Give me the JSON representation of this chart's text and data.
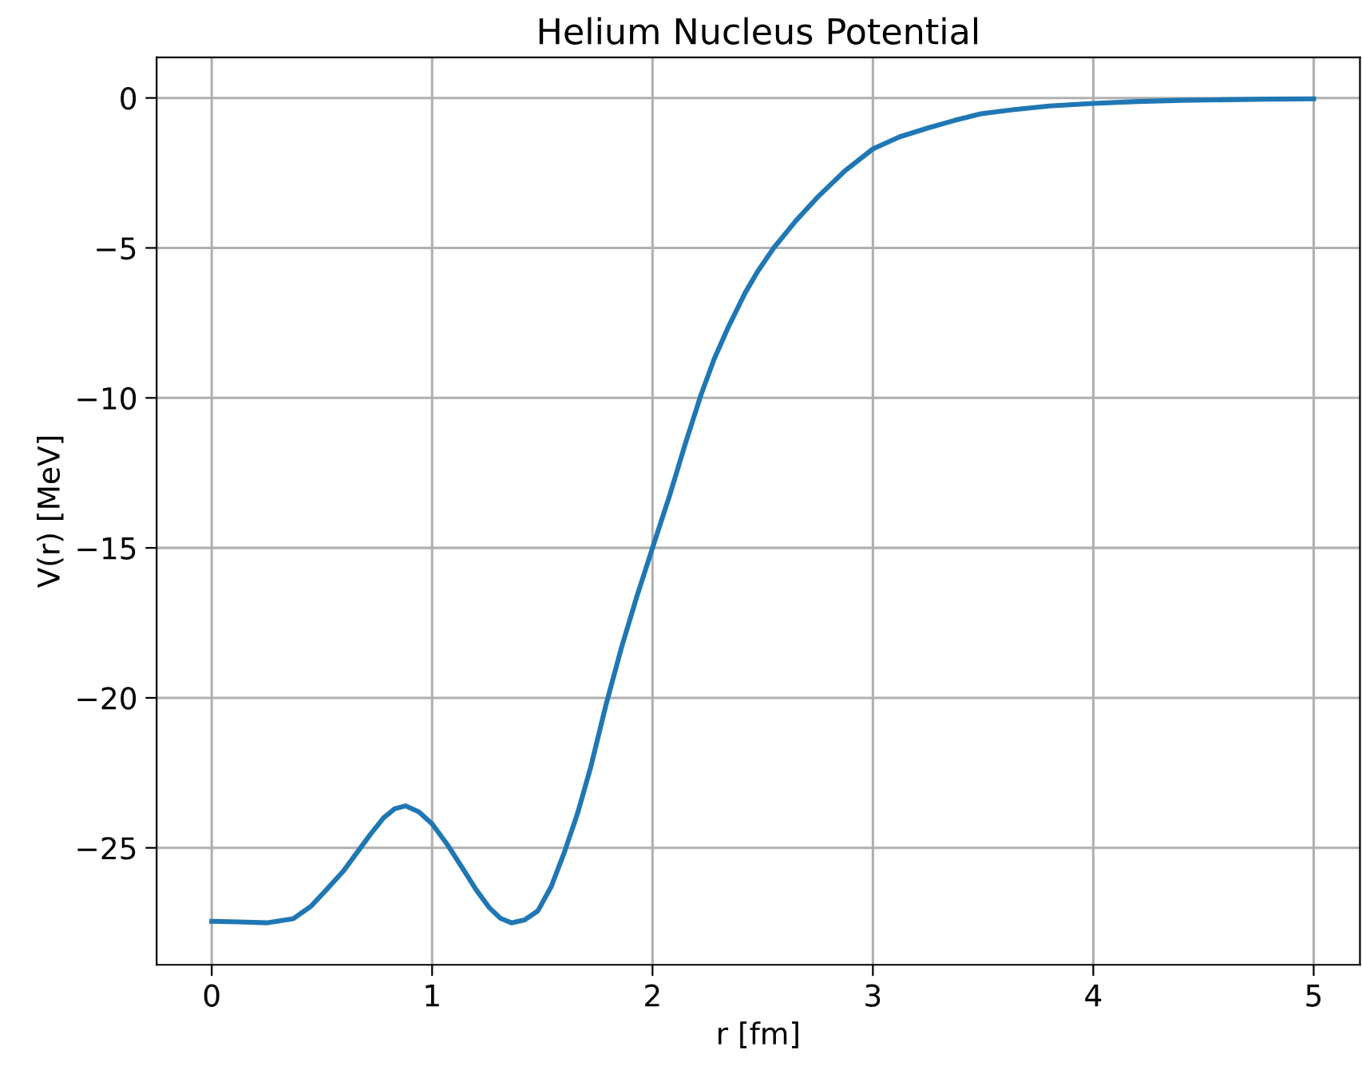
{
  "chart_data": {
    "type": "line",
    "title": "Helium Nucleus Potential",
    "xlabel": "r [fm]",
    "ylabel": "V(r) [MeV]",
    "series": [
      {
        "color": "#1f77b4",
        "x": [
          0,
          0.12,
          0.25,
          0.37,
          0.45,
          0.52,
          0.6,
          0.66,
          0.72,
          0.78,
          0.83,
          0.88,
          0.94,
          1.0,
          1.07,
          1.14,
          1.2,
          1.26,
          1.31,
          1.36,
          1.42,
          1.48,
          1.54,
          1.6,
          1.66,
          1.72,
          1.79,
          1.86,
          1.93,
          2.0,
          2.08,
          2.15,
          2.22,
          2.28,
          2.34,
          2.42,
          2.48,
          2.55,
          2.65,
          2.75,
          2.87,
          3.0,
          3.12,
          3.25,
          3.37,
          3.49,
          3.65,
          3.8,
          4.0,
          4.2,
          4.4,
          4.6,
          4.8,
          5.0
        ],
        "values": [
          -27.45,
          -27.47,
          -27.5,
          -27.36,
          -26.95,
          -26.4,
          -25.75,
          -25.15,
          -24.55,
          -24.0,
          -23.7,
          -23.6,
          -23.8,
          -24.2,
          -24.9,
          -25.7,
          -26.4,
          -27.0,
          -27.35,
          -27.5,
          -27.4,
          -27.1,
          -26.3,
          -25.15,
          -23.85,
          -22.3,
          -20.2,
          -18.3,
          -16.6,
          -15.0,
          -13.2,
          -11.5,
          -9.9,
          -8.7,
          -7.7,
          -6.5,
          -5.75,
          -5.0,
          -4.1,
          -3.3,
          -2.45,
          -1.7,
          -1.3,
          -1.0,
          -0.75,
          -0.53,
          -0.38,
          -0.27,
          -0.18,
          -0.12,
          -0.08,
          -0.06,
          -0.04,
          -0.03
        ]
      }
    ],
    "xlim": [
      -0.25,
      5.21
    ],
    "ylim": [
      -28.9,
      1.35
    ],
    "xticks": [
      0,
      1,
      2,
      3,
      4,
      5
    ],
    "yticks": [
      0,
      -5,
      -10,
      -15,
      -20,
      -25
    ],
    "grid": true
  }
}
